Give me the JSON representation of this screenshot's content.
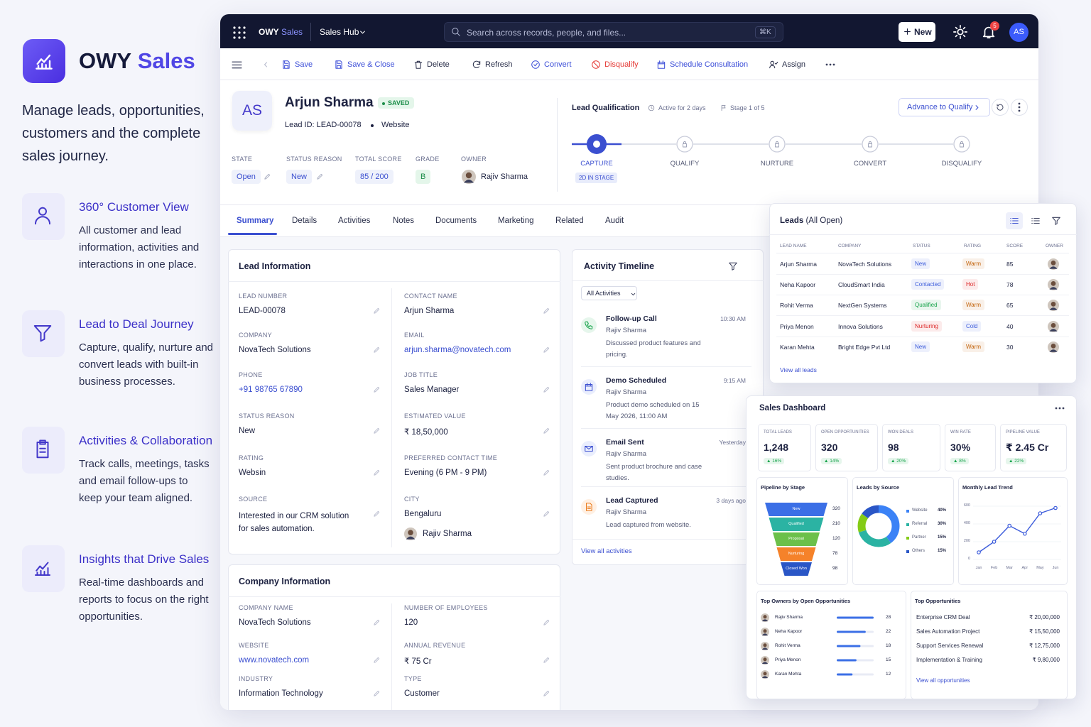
{
  "brand": {
    "name": "OWY",
    "product": "Sales",
    "tagline": "Manage leads, opportunities, customers and the complete sales journey."
  },
  "features": [
    {
      "title": "360° Customer View",
      "text": "All customer and lead information, activities and interactions in one place."
    },
    {
      "title": "Lead to Deal Journey",
      "text": "Capture, qualify, nurture and convert leads with built-in business processes."
    },
    {
      "title": "Activities & Collaboration",
      "text": "Track calls, meetings, tasks and email follow-ups to keep your team aligned."
    },
    {
      "title": "Insights that Drive Sales",
      "text": "Real-time dashboards and reports to focus on the right opportunities."
    }
  ],
  "topbar": {
    "brand": "OWY",
    "product": "Sales",
    "hub": "Sales Hub",
    "search": "Search across records, people, and files...",
    "shortcut": "⌘K",
    "new": "New",
    "notifications": "5",
    "avatar": "AS"
  },
  "toolbar": [
    {
      "label": "Save",
      "color": "#3d4fd8"
    },
    {
      "label": "Save & Close",
      "color": "#3d4fd8"
    },
    {
      "label": "Delete",
      "color": "#2a2f4a"
    },
    {
      "label": "Refresh",
      "color": "#2a2f4a"
    },
    {
      "label": "Convert",
      "color": "#3d4fd8"
    },
    {
      "label": "Disqualify",
      "color": "#e53935"
    },
    {
      "label": "Schedule Consultation",
      "color": "#3d4fd8"
    },
    {
      "label": "Assign",
      "color": "#2a2f4a"
    }
  ],
  "record": {
    "avatar": "AS",
    "name": "Arjun Sharma",
    "status": "SAVED",
    "lead_id": "Lead ID: LEAD-00078",
    "source": "Website",
    "fields": [
      {
        "label": "STATE",
        "value": "Open"
      },
      {
        "label": "STATUS REASON",
        "value": "New"
      },
      {
        "label": "TOTAL SCORE",
        "value": "85 / 200"
      },
      {
        "label": "GRADE",
        "value": "B"
      },
      {
        "label": "OWNER",
        "value": "Rajiv Sharma"
      }
    ]
  },
  "process": {
    "title": "Lead Qualification",
    "active": "Active for 2 days",
    "stage": "Stage 1 of 5",
    "advance": "Advance to Qualify",
    "stages": [
      "CAPTURE",
      "QUALIFY",
      "NURTURE",
      "CONVERT",
      "DISQUALIFY"
    ],
    "time_in_stage": "2D IN STAGE"
  },
  "tabs": [
    "Summary",
    "Details",
    "Activities",
    "Notes",
    "Documents",
    "Marketing",
    "Related",
    "Audit"
  ],
  "lead_info": {
    "title": "Lead Information",
    "left": [
      {
        "label": "LEAD NUMBER",
        "value": "LEAD-00078"
      },
      {
        "label": "COMPANY",
        "value": "NovaTech Solutions"
      },
      {
        "label": "PHONE",
        "value": "+91 98765 67890"
      },
      {
        "label": "STATUS REASON",
        "value": "New"
      },
      {
        "label": "RATING",
        "value": "Websin"
      },
      {
        "label": "SOURCE",
        "value": "Interested in our CRM solution for sales automation."
      }
    ],
    "right": [
      {
        "label": "CONTACT NAME",
        "value": "Arjun Sharma"
      },
      {
        "label": "EMAIL",
        "value": "arjun.sharma@novatech.com"
      },
      {
        "label": "JOB TITLE",
        "value": "Sales Manager"
      },
      {
        "label": "ESTIMATED VALUE",
        "value": "₹ 18,50,000"
      },
      {
        "label": "PREFERRED CONTACT TIME",
        "value": "Evening (6 PM - 9 PM)"
      },
      {
        "label": "CITY",
        "value": "Bengaluru"
      }
    ],
    "owner": "Rajiv Sharma"
  },
  "company_info": {
    "title": "Company Information",
    "left": [
      {
        "label": "COMPANY NAME",
        "value": "NovaTech Solutions"
      },
      {
        "label": "WEBSITE",
        "value": "www.novatech.com"
      },
      {
        "label": "INDUSTRY",
        "value": "Information Technology"
      }
    ],
    "right": [
      {
        "label": "NUMBER OF EMPLOYEES",
        "value": "120"
      },
      {
        "label": "ANNUAL REVENUE",
        "value": "₹ 75 Cr"
      },
      {
        "label": "TYPE",
        "value": "Customer"
      }
    ]
  },
  "timeline": {
    "title": "Activity Timeline",
    "filter": "All Activities",
    "items": [
      {
        "title": "Follow-up Call",
        "person": "Rajiv Sharma",
        "text": "Discussed product features and pricing.",
        "time": "10:30 AM"
      },
      {
        "title": "Demo Scheduled",
        "person": "Rajiv Sharma",
        "text": "Product demo scheduled on 15 May 2026, 11:00 AM",
        "time": "9:15 AM"
      },
      {
        "title": "Email Sent",
        "person": "Rajiv Sharma",
        "text": "Sent product brochure and case studies.",
        "time": "Yesterday"
      },
      {
        "title": "Lead Captured",
        "person": "Rajiv Sharma",
        "text": "Lead captured from website.",
        "time": "3 days ago"
      }
    ],
    "link": "View all activities"
  },
  "leads": {
    "title": "Leads",
    "view": "(All Open)",
    "columns": [
      "LEAD NAME",
      "COMPANY",
      "STATUS",
      "RATING",
      "SCORE",
      "OWNER"
    ],
    "rows": [
      {
        "name": "Arjun Sharma",
        "company": "NovaTech Solutions",
        "status": "New",
        "status_color": "#3b5bdb",
        "rating": "Warm",
        "rating_color": "#c2620a",
        "score": 85
      },
      {
        "name": "Neha Kapoor",
        "company": "CloudSmart India",
        "status": "Contacted",
        "status_color": "#3b5bdb",
        "rating": "Hot",
        "rating_color": "#dc2626",
        "score": 78
      },
      {
        "name": "Rohit Verma",
        "company": "NextGen Systems",
        "status": "Qualified",
        "status_color": "#16a34a",
        "rating": "Warm",
        "rating_color": "#c2620a",
        "score": 65
      },
      {
        "name": "Priya Menon",
        "company": "Innova Solutions",
        "status": "Nurturing",
        "status_color": "#dc2626",
        "rating": "Cold",
        "rating_color": "#3b5bdb",
        "score": 40
      },
      {
        "name": "Karan Mehta",
        "company": "Bright Edge Pvt Ltd",
        "status": "New",
        "status_color": "#3b5bdb",
        "rating": "Warm",
        "rating_color": "#c2620a",
        "score": 30
      }
    ],
    "link": "View all leads"
  },
  "dashboard": {
    "title": "Sales Dashboard",
    "kpis": [
      {
        "label": "TOTAL LEADS",
        "value": "1,248",
        "change": "▲ 16%"
      },
      {
        "label": "OPEN OPPORTUNITIES",
        "value": "320",
        "change": "▲ 14%"
      },
      {
        "label": "WON DEALS",
        "value": "98",
        "change": "▲ 20%"
      },
      {
        "label": "WIN RATE",
        "value": "30%",
        "change": "▲ 8%"
      },
      {
        "label": "PIPELINE VALUE",
        "value": "₹ 2.45 Cr",
        "change": "▲ 22%"
      }
    ],
    "pipeline": {
      "title": "Pipeline by Stage",
      "stages": [
        "New",
        "Qualified",
        "Proposal",
        "Nurturing",
        "Closed Won"
      ],
      "values": [
        320,
        210,
        120,
        78,
        98
      ],
      "colors": [
        "#3b6fe6",
        "#2bb3a3",
        "#6cc04a",
        "#f5822a",
        "#2a56c6"
      ]
    },
    "source": {
      "title": "Leads by Source",
      "categories": [
        "Website",
        "Referral",
        "Partner",
        "Others"
      ],
      "values": [
        40,
        30,
        15,
        15
      ],
      "value_labels": [
        "40%",
        "30%",
        "15%",
        "15%"
      ],
      "colors": [
        "#3b82f6",
        "#2bb3a3",
        "#84cc16",
        "#2a56c6"
      ]
    },
    "trend": {
      "title": "Monthly Lead Trend",
      "categories": [
        "Jan",
        "Feb",
        "Mar",
        "Apr",
        "May",
        "Jun"
      ],
      "values": [
        80,
        200,
        380,
        290,
        520,
        580
      ],
      "ylim": [
        0,
        600
      ],
      "yticks": [
        0,
        200,
        400,
        600
      ],
      "color": "#3b5bdb"
    },
    "owners": {
      "title": "Top Owners by Open Opportunities",
      "names": [
        "Rajiv Sharma",
        "Neha Kapoor",
        "Rohit Verma",
        "Priya Menon",
        "Karan Mehta"
      ],
      "values": [
        28,
        22,
        18,
        15,
        12
      ],
      "color": "#3b6fe6"
    },
    "opportunities": {
      "title": "Top Opportunities",
      "names": [
        "Enterprise CRM Deal",
        "Sales Automation Project",
        "Support Services Renewal",
        "Implementation & Training"
      ],
      "amounts": [
        "₹ 20,00,000",
        "₹ 15,50,000",
        "₹ 12,75,000",
        "₹ 9,80,000"
      ],
      "link": "View all opportunities"
    }
  }
}
